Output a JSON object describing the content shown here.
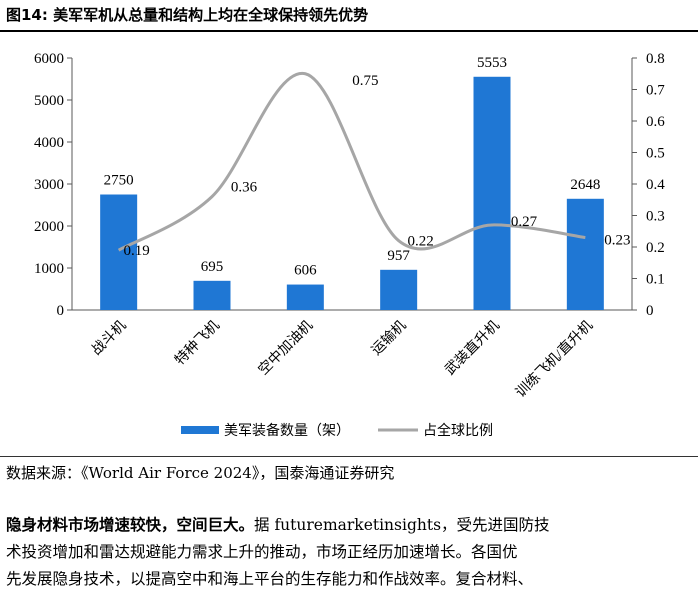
{
  "figure": {
    "title": "图14:  美军军机从总量和结构上均在全球保持领先优势"
  },
  "chart_data": {
    "type": "bar",
    "categories": [
      "战斗机",
      "特种飞机",
      "空中加油机",
      "运输机",
      "武装直升机",
      "训练飞机/直升机"
    ],
    "series": [
      {
        "name": "美军装备数量（架）",
        "type": "bar",
        "axis": "left",
        "values": [
          2750,
          695,
          606,
          957,
          5553,
          2648
        ],
        "labels": [
          "2750",
          "695",
          "606",
          "957",
          "5553",
          "2648"
        ],
        "color": "#1f77d4"
      },
      {
        "name": "占全球比例",
        "type": "line",
        "smooth": true,
        "axis": "right",
        "values": [
          0.19,
          0.36,
          0.75,
          0.22,
          0.27,
          0.23
        ],
        "labels": [
          "0.19",
          "0.36",
          "0.75",
          "0.22",
          "0.27",
          "0.23"
        ],
        "color": "#a6a6a6"
      }
    ],
    "y_left": {
      "min": 0,
      "max": 6000,
      "ticks": [
        "0",
        "1000",
        "2000",
        "3000",
        "4000",
        "5000",
        "6000"
      ]
    },
    "y_right": {
      "min": 0,
      "max": 0.8,
      "ticks": [
        "0",
        "0.1",
        "0.2",
        "0.3",
        "0.4",
        "0.5",
        "0.6",
        "0.7",
        "0.8"
      ]
    },
    "grid": false,
    "legend_position": "bottom"
  },
  "source": {
    "text": "数据来源：《World Air Force 2024》，国泰海通证券研究"
  },
  "paragraph": {
    "bold": "隐身材料市场增速较快，空间巨大。",
    "line1": "据 futuremarketinsights，受先进国防技",
    "line2": "术投资增加和雷达规避能力需求上升的推动，市场正经历加速增长。各国优",
    "line3": "先发展隐身技术，以提高空中和海上平台的生存能力和作战效率。复合材料、"
  }
}
